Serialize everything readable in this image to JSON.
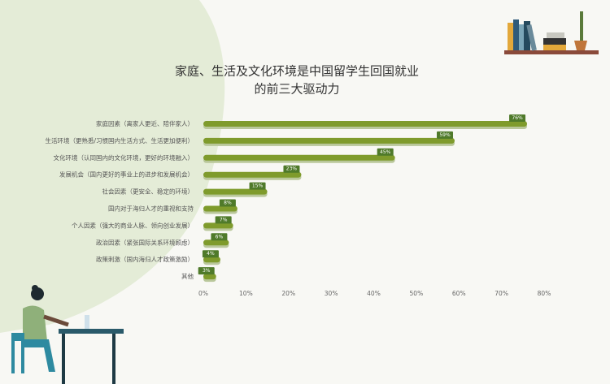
{
  "chart_data": {
    "type": "bar",
    "orientation": "horizontal",
    "title": [
      "家庭、生活及文化环境是中国留学生回国就业",
      "的前三大驱动力"
    ],
    "categories": [
      "家庭因素（离家人更近、陪伴家人）",
      "生活环境（更熟悉/习惯国内生活方式、生活更加便利）",
      "文化环境（认同国内的文化环境，更好的环境融入）",
      "发展机会（国内更好的事业上的进步和发展机会）",
      "社会因素（更安全、稳定的环境）",
      "国内对于海归人才的重视和支持",
      "个人因素（强大的商业人脉、领向创业发展）",
      "政治因素（紧张国际关系环境顾虑）",
      "政策刺激（国内海归人才政策激励）",
      "其他"
    ],
    "values": [
      76,
      59,
      45,
      23,
      15,
      8,
      7,
      6,
      4,
      3
    ],
    "value_labels": [
      "76%",
      "59%",
      "45%",
      "23%",
      "15%",
      "8%",
      "7%",
      "6%",
      "4%",
      "3%"
    ],
    "color": "#7f9b2c",
    "xlim": [
      0,
      80
    ],
    "xticks": [
      {
        "value": 0,
        "label": "0%"
      },
      {
        "value": 10,
        "label": "10%"
      },
      {
        "value": 20,
        "label": "20%"
      },
      {
        "value": 30,
        "label": "30%"
      },
      {
        "value": 40,
        "label": "40%"
      },
      {
        "value": 50,
        "label": "50%"
      },
      {
        "value": 60,
        "label": "60%"
      },
      {
        "value": 70,
        "label": "70%"
      },
      {
        "value": 80,
        "label": "80%"
      }
    ]
  }
}
